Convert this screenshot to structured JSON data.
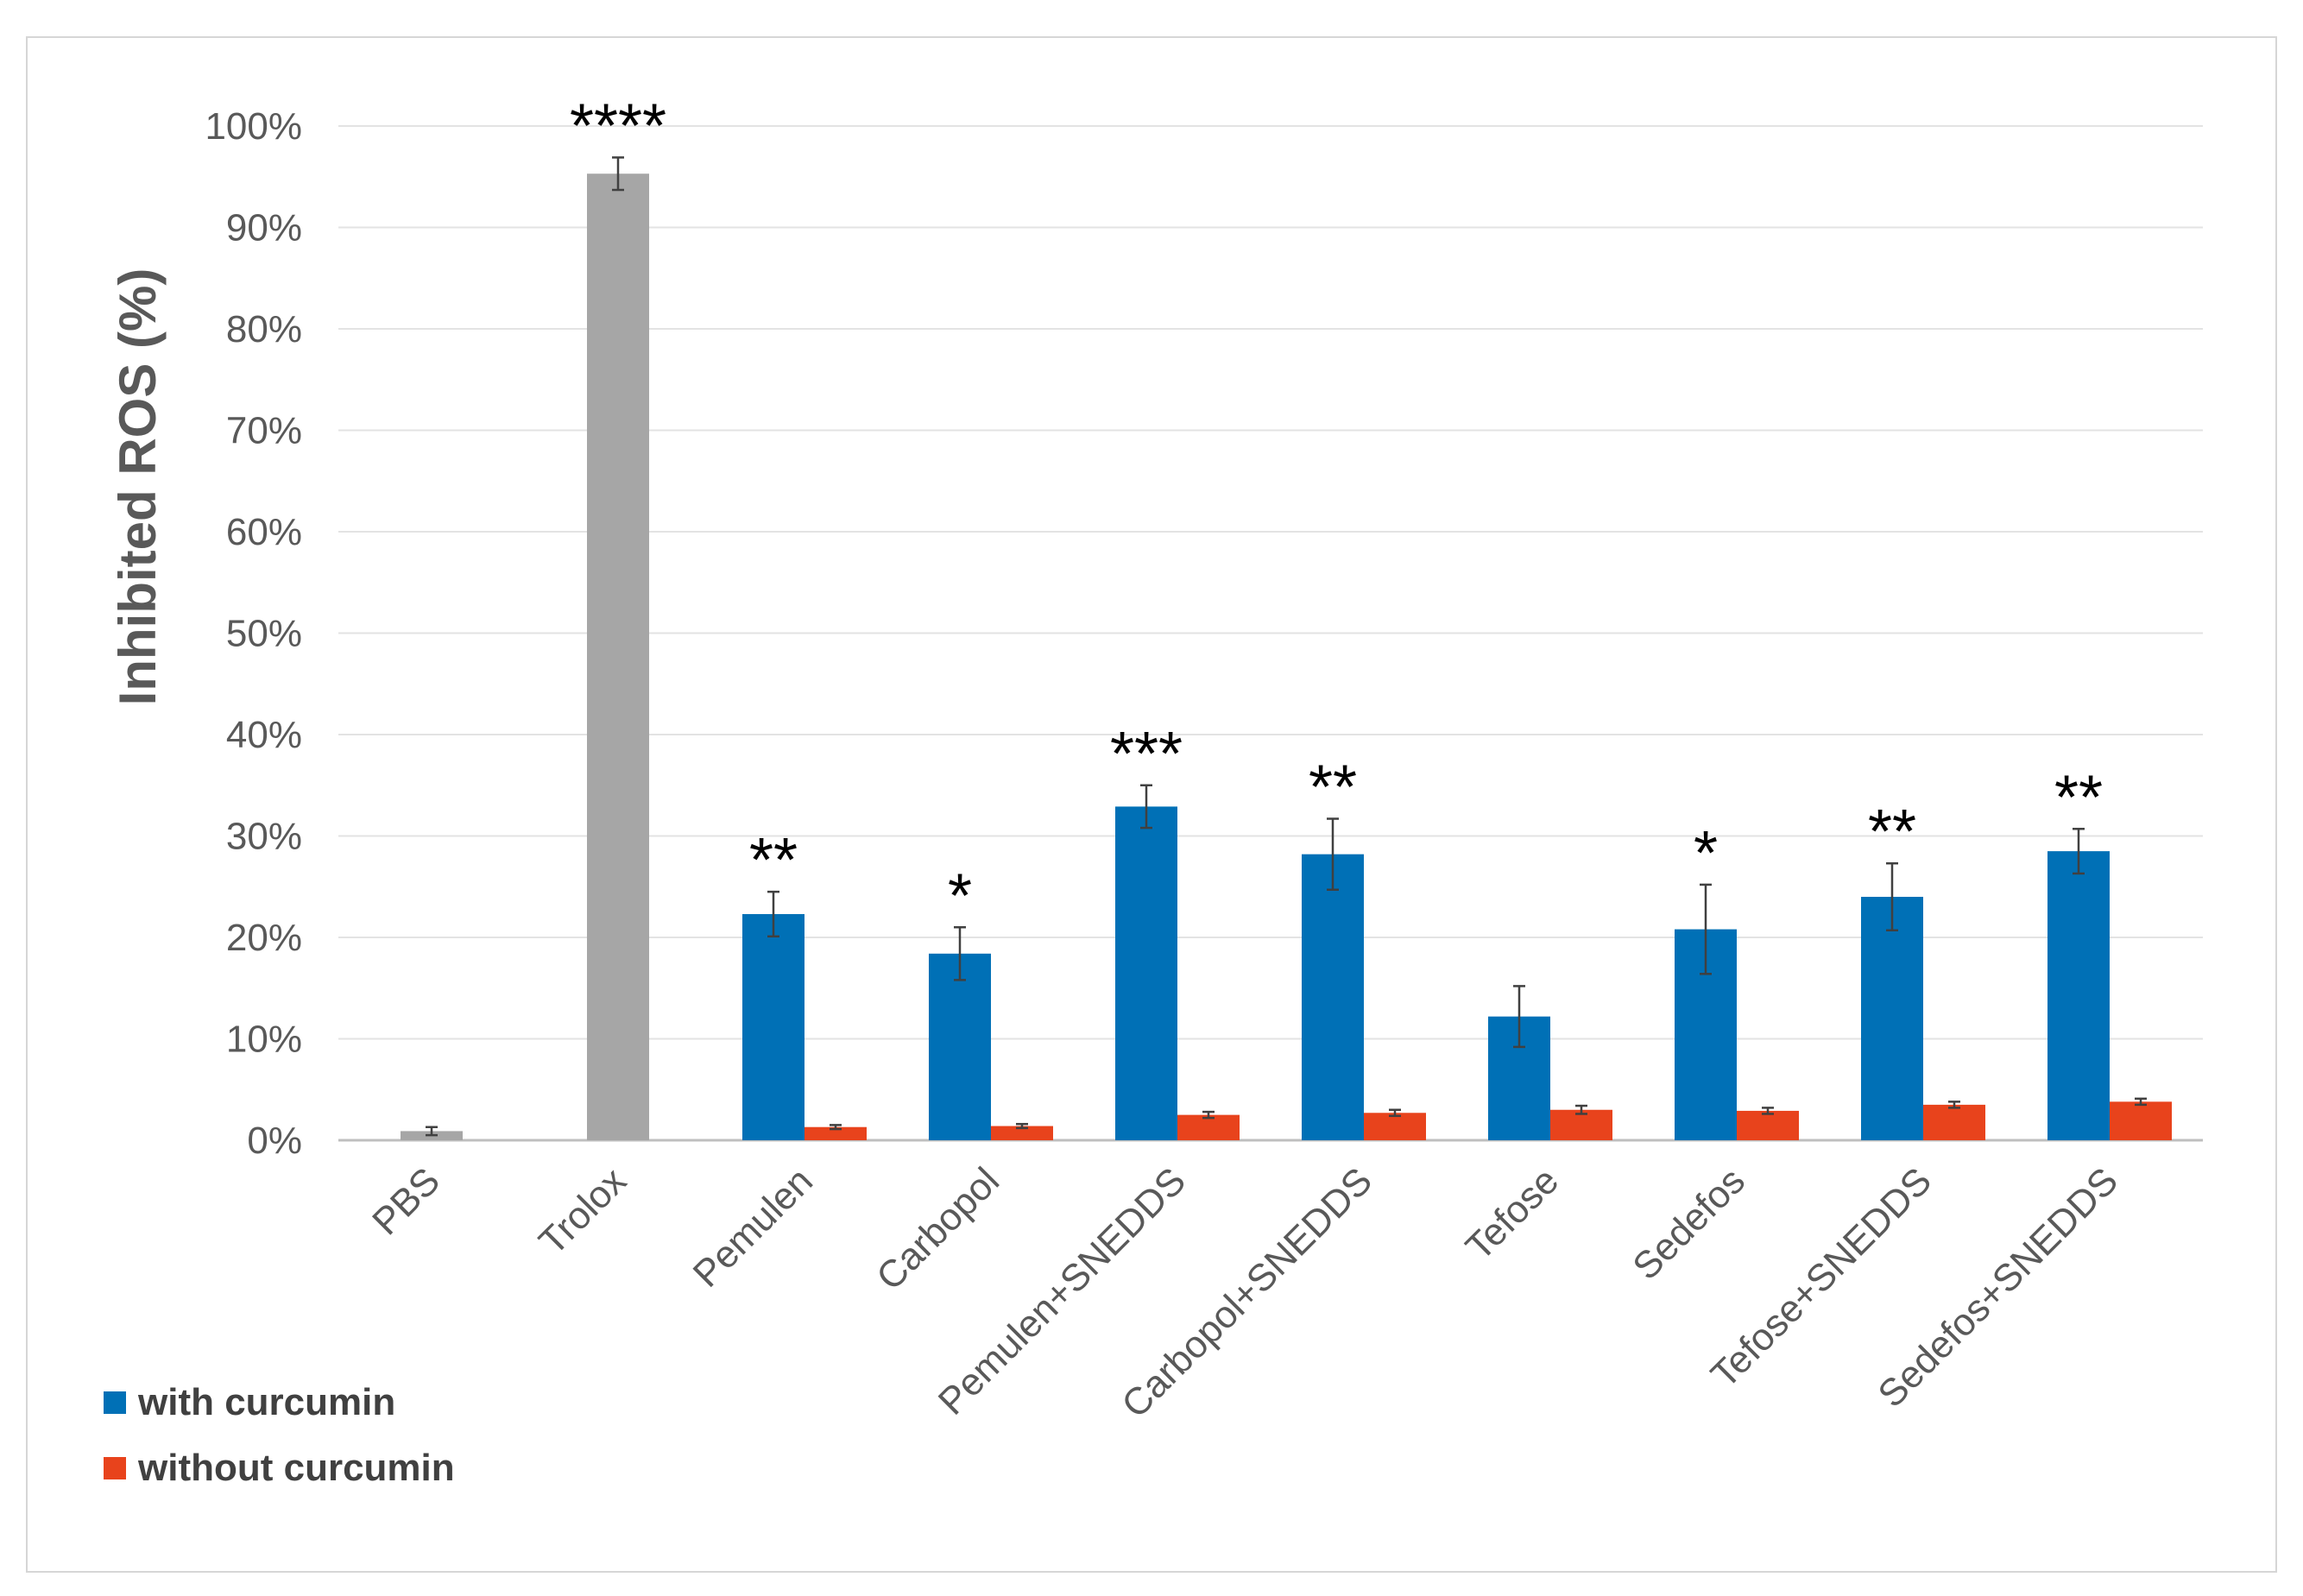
{
  "chart_data": {
    "type": "bar",
    "title": "",
    "xlabel": "",
    "ylabel": "Inhibited ROS (%)",
    "ylim": [
      0,
      100
    ],
    "ytick_step": 10,
    "ytick_suffix": "%",
    "grid": true,
    "legend_position": "bottom-left",
    "categories": [
      "PBS",
      "Trolox",
      "Pemulen",
      "Carbopol",
      "Pemulen+SNEDDS",
      "Carbopol+SNEDDS",
      "Tefose",
      "Sedefos",
      "Tefose+SNEDDS",
      "Sedefos+SNEDDS"
    ],
    "controls": {
      "color": "#a6a6a6",
      "values": [
        0.9,
        95.3,
        null,
        null,
        null,
        null,
        null,
        null,
        null,
        null
      ],
      "errors": [
        0.4,
        1.6,
        null,
        null,
        null,
        null,
        null,
        null,
        null,
        null
      ]
    },
    "series": [
      {
        "name": "with curcumin",
        "color": "#0070b6",
        "values": [
          null,
          null,
          22.3,
          18.4,
          32.9,
          28.2,
          12.2,
          20.8,
          24.0,
          28.5
        ],
        "errors": [
          null,
          null,
          2.2,
          2.6,
          2.1,
          3.5,
          3.0,
          4.4,
          3.3,
          2.2
        ]
      },
      {
        "name": "without curcumin",
        "color": "#e8431c",
        "values": [
          null,
          null,
          1.3,
          1.4,
          2.5,
          2.7,
          3.0,
          2.9,
          3.5,
          3.8
        ],
        "errors": [
          null,
          null,
          0.2,
          0.2,
          0.3,
          0.3,
          0.4,
          0.3,
          0.3,
          0.3
        ]
      }
    ],
    "annotations": [
      "",
      "****",
      "**",
      "*",
      "***",
      "**",
      "",
      "*",
      "**",
      "**"
    ]
  }
}
